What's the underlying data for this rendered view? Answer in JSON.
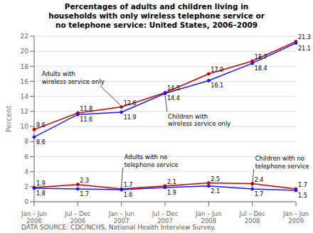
{
  "chart_data": {
    "type": "line",
    "title": "Percentages of adults and children living in\nhouseholds with only wireless telephone service or\nno telephone service: United States, 2006–2009",
    "categories": [
      "Jan – Jun\n2006",
      "Jul – Dec\n2006",
      "Jan – Jun\n2007",
      "Jul – Dec\n2007",
      "Jan – Jun\n2008",
      "Jul – Dec\n2008",
      "Jan – Jun\n2009"
    ],
    "series": [
      {
        "name": "Adults with\nwireless service only",
        "color": "#cc0000",
        "values": [
          9.6,
          11.8,
          12.6,
          14.5,
          17.0,
          18.7,
          21.3
        ],
        "value_labels": [
          "9.6",
          "11.8",
          "12.6",
          "14.5",
          "17.0",
          "18.7",
          "21.3"
        ]
      },
      {
        "name": "Children with\nwireless service only",
        "color": "#1a1aff",
        "values": [
          8.6,
          11.6,
          11.9,
          14.4,
          16.1,
          18.4,
          21.1
        ]
      },
      {
        "name": "Adults with no\ntelephone service",
        "color": "#cc0000",
        "values": [
          1.9,
          2.3,
          1.7,
          2.1,
          2.5,
          2.4,
          1.7
        ]
      },
      {
        "name": "Children with no\ntelephone service",
        "color": "#1a1aff",
        "values": [
          1.8,
          1.7,
          1.6,
          1.9,
          2.1,
          1.7,
          1.5
        ]
      }
    ],
    "ylabel": "Percent",
    "ylim": [
      0,
      22
    ],
    "yticks": [
      0,
      2,
      4,
      6,
      8,
      10,
      12,
      14,
      16,
      18,
      20,
      22
    ],
    "grid": true,
    "data_labels": true,
    "marker": "circle",
    "footnote": "DATA SOURCE: CDC/NCHS, National Health Interview Survey."
  }
}
